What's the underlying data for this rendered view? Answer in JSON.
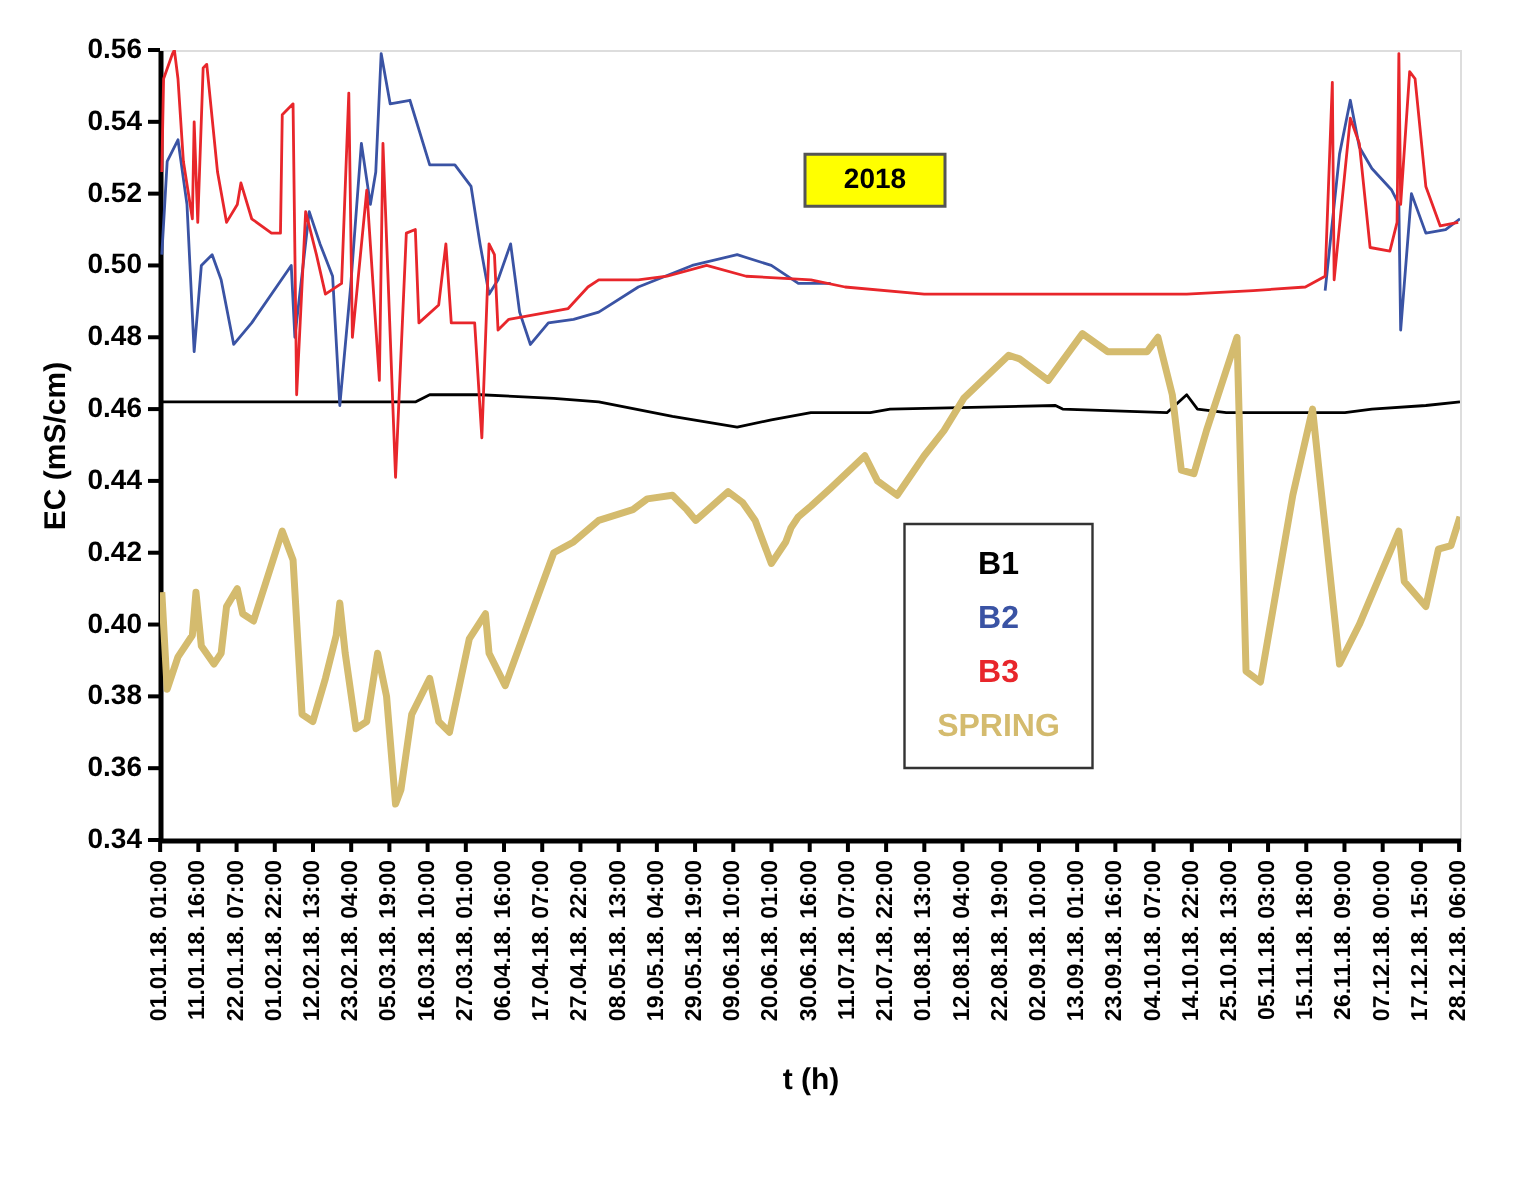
{
  "chart_data": {
    "type": "line",
    "xlabel": "t (h)",
    "ylabel": "EC (mS/cm)",
    "annotations": [
      "2018"
    ],
    "xlim": [
      "2018-01-01T00:00",
      "2018-12-28T12:00"
    ],
    "xticks": [
      {
        "value": "2018-01-01T01:00",
        "label": "01.01.18. 01:00"
      },
      {
        "value": "2018-01-11T16:00",
        "label": "11.01.18.  16:00"
      },
      {
        "value": "2018-01-22T07:00",
        "label": "22.01.18.  07:00"
      },
      {
        "value": "2018-02-01T22:00",
        "label": "01.02.18.  22:00"
      },
      {
        "value": "2018-02-12T13:00",
        "label": "12.02.18.  13:00"
      },
      {
        "value": "2018-02-23T04:00",
        "label": "23.02.18.  04:00"
      },
      {
        "value": "2018-03-05T19:00",
        "label": "05.03.18.  19:00"
      },
      {
        "value": "2018-03-16T10:00",
        "label": "16.03.18.  10:00"
      },
      {
        "value": "2018-03-27T01:00",
        "label": "27.03.18.  01:00"
      },
      {
        "value": "2018-04-06T16:00",
        "label": "06.04.18.  16:00"
      },
      {
        "value": "2018-04-17T07:00",
        "label": "17.04.18.  07:00"
      },
      {
        "value": "2018-04-27T22:00",
        "label": "27.04.18.  22:00"
      },
      {
        "value": "2018-05-08T13:00",
        "label": "08.05.18.  13:00"
      },
      {
        "value": "2018-05-19T04:00",
        "label": "19.05.18.  04:00"
      },
      {
        "value": "2018-05-29T19:00",
        "label": "29.05.18.  19:00"
      },
      {
        "value": "2018-06-09T10:00",
        "label": "09.06.18.  10:00"
      },
      {
        "value": "2018-06-20T01:00",
        "label": "20.06.18.  01:00"
      },
      {
        "value": "2018-06-30T16:00",
        "label": "30.06.18.  16:00"
      },
      {
        "value": "2018-07-11T07:00",
        "label": "11.07.18.  07:00"
      },
      {
        "value": "2018-07-21T22:00",
        "label": "21.07.18.  22:00"
      },
      {
        "value": "2018-08-01T13:00",
        "label": "01.08.18.  13:00"
      },
      {
        "value": "2018-08-12T04:00",
        "label": "12.08.18.  04:00"
      },
      {
        "value": "2018-08-22T19:00",
        "label": "22.08.18.  19:00"
      },
      {
        "value": "2018-09-02T10:00",
        "label": "02.09.18.  10:00"
      },
      {
        "value": "2018-09-13T01:00",
        "label": "13.09.18.  01:00"
      },
      {
        "value": "2018-09-23T16:00",
        "label": "23.09.18.  16:00"
      },
      {
        "value": "2018-10-04T07:00",
        "label": "04.10.18.  07:00"
      },
      {
        "value": "2018-10-14T22:00",
        "label": "14.10.18.  22:00"
      },
      {
        "value": "2018-10-25T13:00",
        "label": "25.10.18.  13:00"
      },
      {
        "value": "2018-11-05T03:00",
        "label": "05.11.18.  03:00"
      },
      {
        "value": "2018-11-15T18:00",
        "label": "15.11.18.  18:00"
      },
      {
        "value": "2018-11-26T09:00",
        "label": "26.11.18.  09:00"
      },
      {
        "value": "2018-12-07T00:00",
        "label": "07.12.18.  00:00"
      },
      {
        "value": "2018-12-17T15:00",
        "label": "17.12.18.  15:00"
      },
      {
        "value": "2018-12-28T06:00",
        "label": "28.12.18.  06:00"
      }
    ],
    "ylim": [
      0.34,
      0.56
    ],
    "yticks": [
      0.34,
      0.36,
      0.38,
      {
        "value": 0.4,
        "label": "0.40"
      },
      0.42,
      0.44,
      0.46,
      0.48,
      {
        "value": 0.5,
        "label": "0.50"
      },
      0.52,
      0.54,
      0.56
    ],
    "grid": false,
    "legend": "bottom right",
    "marker": "none",
    "line_style": "solid",
    "series": [
      {
        "name": "B1",
        "color": "#000000",
        "x": [
          "2018-01-01",
          "2018-03-13",
          "2018-03-17",
          "2018-03-31",
          "2018-04-20T12:00",
          "2018-05-03",
          "2018-05-23T12:00",
          "2018-06-10T12:00",
          "2018-06-20",
          "2018-07-01",
          "2018-07-17T12:00",
          "2018-07-23",
          "2018-09-07",
          "2018-09-09",
          "2018-10-08",
          "2018-10-13T12:00",
          "2018-10-16T12:00",
          "2018-10-24T12:00",
          "2018-11-26T12:00",
          "2018-12-04",
          "2018-12-19",
          "2018-12-28T12:00"
        ],
        "values": [
          0.462,
          0.462,
          0.464,
          0.464,
          0.463,
          0.462,
          0.458,
          0.455,
          0.457,
          0.459,
          0.459,
          0.46,
          0.461,
          0.46,
          0.459,
          0.464,
          0.46,
          0.459,
          0.459,
          0.46,
          0.461,
          0.462
        ]
      },
      {
        "name": "B2",
        "color": "#3a53a4",
        "x": [
          "2018-01-01T12:00",
          "2018-01-03",
          "2018-01-06",
          "2018-01-08T12:00",
          "2018-01-10T12:00",
          "2018-01-12T12:00",
          "2018-01-15T12:00",
          "2018-01-18",
          "2018-01-21T12:00",
          "2018-01-26T12:00",
          "2018-02-06T12:00",
          "2018-02-07T12:00",
          "2018-02-11T12:00",
          "2018-02-14T12:00",
          "2018-02-18",
          "2018-02-20",
          "2018-02-23",
          "2018-02-26",
          "2018-02-28T12:00",
          "2018-03-02",
          "2018-03-03T12:00",
          "2018-03-06",
          "2018-03-11T12:00",
          "2018-03-17",
          "2018-03-24",
          "2018-03-28T12:00",
          "2018-03-31",
          "2018-04-02T12:00",
          "2018-04-05",
          "2018-04-08T12:00",
          "2018-04-11",
          "2018-04-14",
          "2018-04-19",
          "2018-04-26",
          "2018-05-03",
          "2018-05-14",
          "2018-05-29",
          "2018-06-10T12:00",
          "2018-06-20",
          "2018-06-27T12:00",
          "2018-07-06T12:00",
          "2018-08-01",
          "2018-11-21",
          "2018-11-25",
          "2018-11-28",
          "2018-11-30T12:00",
          "2018-12-04",
          "2018-12-09T12:00",
          "2018-12-11T12:00",
          "2018-12-12",
          "2018-12-15",
          "2018-12-19",
          "2018-12-24T12:00",
          "2018-12-28T12:00"
        ],
        "values": [
          0.503,
          0.529,
          0.535,
          0.517,
          0.476,
          0.5,
          0.503,
          0.496,
          0.478,
          0.484,
          0.5,
          0.48,
          0.515,
          0.506,
          0.497,
          0.461,
          0.494,
          0.534,
          0.517,
          0.526,
          0.559,
          0.545,
          0.546,
          0.528,
          0.528,
          0.522,
          0.506,
          0.492,
          0.496,
          0.506,
          0.487,
          0.478,
          0.484,
          0.485,
          0.487,
          0.494,
          0.5,
          0.503,
          0.5,
          0.495,
          0.495,
          null,
          0.493,
          0.531,
          0.546,
          0.533,
          0.527,
          0.521,
          0.517,
          0.482,
          0.52,
          0.509,
          0.51,
          0.513
        ]
      },
      {
        "name": "B3",
        "color": "#e8262b",
        "x": [
          "2018-01-01T12:00",
          "2018-01-02",
          "2018-01-04T12:00",
          "2018-01-05",
          "2018-01-06",
          "2018-01-07T12:00",
          "2018-01-10",
          "2018-01-10T12:00",
          "2018-01-11T12:00",
          "2018-01-13",
          "2018-01-14",
          "2018-01-17",
          "2018-01-19T12:00",
          "2018-01-22T12:00",
          "2018-01-23T12:00",
          "2018-01-26T12:00",
          "2018-02-01",
          "2018-02-03T12:00",
          "2018-02-04",
          "2018-02-07",
          "2018-02-08",
          "2018-02-10T12:00",
          "2018-02-13T12:00",
          "2018-02-16",
          "2018-02-20T12:00",
          "2018-02-22T12:00",
          "2018-02-23T12:00",
          "2018-02-27T12:00",
          "2018-03-03",
          "2018-03-04",
          "2018-03-07T12:00",
          "2018-03-10T12:00",
          "2018-03-13",
          "2018-03-14",
          "2018-03-19T12:00",
          "2018-03-21T12:00",
          "2018-03-23",
          "2018-03-29T12:00",
          "2018-03-31T12:00",
          "2018-04-02T12:00",
          "2018-04-04",
          "2018-04-05",
          "2018-04-08",
          "2018-04-24T12:00",
          "2018-04-30",
          "2018-05-03",
          "2018-05-14",
          "2018-05-22",
          "2018-06-02",
          "2018-06-13",
          "2018-07-01",
          "2018-07-10T12:00",
          "2018-08-01T12:00",
          "2018-10-13T12:00",
          "2018-11-01",
          "2018-11-15T12:00",
          "2018-11-21",
          "2018-11-23",
          "2018-11-23T12:00",
          "2018-11-28",
          "2018-11-30T12:00",
          "2018-12-03T12:00",
          "2018-12-09",
          "2018-12-11",
          "2018-12-11T12:00",
          "2018-12-12",
          "2018-12-14T12:00",
          "2018-12-16",
          "2018-12-19",
          "2018-12-23",
          "2018-12-28"
        ],
        "values": [
          0.526,
          0.552,
          0.559,
          0.56,
          0.552,
          0.529,
          0.513,
          0.54,
          0.512,
          0.555,
          0.556,
          0.526,
          0.512,
          0.517,
          0.523,
          0.513,
          0.509,
          0.509,
          0.542,
          0.545,
          0.464,
          0.515,
          0.503,
          0.492,
          0.495,
          0.548,
          0.48,
          0.521,
          0.468,
          0.534,
          0.441,
          0.509,
          0.51,
          0.484,
          0.489,
          0.506,
          0.484,
          0.484,
          0.452,
          0.506,
          0.503,
          0.482,
          0.485,
          0.488,
          0.494,
          0.496,
          0.496,
          0.497,
          0.5,
          0.497,
          0.496,
          0.494,
          0.492,
          0.492,
          0.493,
          0.494,
          0.497,
          0.551,
          0.496,
          0.541,
          0.534,
          0.505,
          0.504,
          0.512,
          0.559,
          0.517,
          0.554,
          0.552,
          0.522,
          0.511,
          0.512
        ]
      },
      {
        "name": "SPRING",
        "color": "#d4bb6e",
        "x": [
          "2018-01-01T12:00",
          "2018-01-03",
          "2018-01-06",
          "2018-01-10",
          "2018-01-11",
          "2018-01-12T12:00",
          "2018-01-16",
          "2018-01-18",
          "2018-01-19T12:00",
          "2018-01-22T12:00",
          "2018-01-24",
          "2018-01-27",
          "2018-02-04",
          "2018-02-07",
          "2018-02-09T12:00",
          "2018-02-12T12:00",
          "2018-02-16",
          "2018-02-19",
          "2018-02-20",
          "2018-02-21T12:00",
          "2018-02-24T12:00",
          "2018-02-27T12:00",
          "2018-03-02T12:00",
          "2018-03-05",
          "2018-03-07T12:00",
          "2018-03-09",
          "2018-03-12",
          "2018-03-17",
          "2018-03-19T12:00",
          "2018-03-22T12:00",
          "2018-03-28",
          "2018-04-01T12:00",
          "2018-04-02T12:00",
          "2018-04-07",
          "2018-04-11",
          "2018-04-15",
          "2018-04-20T12:00",
          "2018-04-26",
          "2018-05-03",
          "2018-05-12T12:00",
          "2018-05-16T12:00",
          "2018-05-23T12:00",
          "2018-05-27T12:00",
          "2018-05-30",
          "2018-06-08",
          "2018-06-12",
          "2018-06-15T12:00",
          "2018-06-20",
          "2018-06-24",
          "2018-06-25T12:00",
          "2018-06-27T12:00",
          "2018-07-01",
          "2018-07-06T12:00",
          "2018-07-16",
          "2018-07-19T12:00",
          "2018-07-25",
          "2018-08-01T12:00",
          "2018-08-07",
          "2018-08-12T12:00",
          "2018-08-25",
          "2018-08-28",
          "2018-09-05",
          "2018-09-14T12:00",
          "2018-09-21T12:00",
          "2018-10-02T12:00",
          "2018-10-05T12:00",
          "2018-10-09T12:00",
          "2018-10-12",
          "2018-10-15T12:00",
          "2018-10-19",
          "2018-10-27T12:00",
          "2018-10-30",
          "2018-11-03",
          "2018-11-12",
          "2018-11-17T12:00",
          "2018-11-25",
          "2018-11-30T12:00",
          "2018-12-06",
          "2018-12-11T12:00",
          "2018-12-13",
          "2018-12-19",
          "2018-12-22T12:00",
          "2018-12-26",
          "2018-12-28T12:00"
        ],
        "values": [
          0.409,
          0.382,
          0.391,
          0.397,
          0.409,
          0.394,
          0.389,
          0.392,
          0.405,
          0.41,
          0.403,
          0.401,
          0.426,
          0.418,
          0.375,
          0.373,
          0.385,
          0.397,
          0.406,
          0.392,
          0.371,
          0.373,
          0.392,
          0.38,
          0.35,
          0.354,
          0.375,
          0.385,
          0.373,
          0.37,
          0.396,
          0.403,
          0.392,
          0.383,
          0.394,
          0.405,
          0.42,
          0.423,
          0.429,
          0.432,
          0.435,
          0.436,
          0.432,
          0.429,
          0.437,
          0.434,
          0.429,
          0.417,
          0.423,
          0.427,
          0.43,
          0.433,
          0.438,
          0.447,
          0.44,
          0.436,
          0.447,
          0.454,
          0.463,
          0.475,
          0.474,
          0.468,
          0.481,
          0.476,
          0.476,
          0.48,
          0.464,
          0.443,
          0.442,
          0.454,
          0.48,
          0.387,
          0.384,
          0.436,
          0.46,
          0.389,
          0.4,
          0.413,
          0.426,
          0.412,
          0.405,
          0.421,
          0.422,
          0.43
        ]
      }
    ]
  }
}
